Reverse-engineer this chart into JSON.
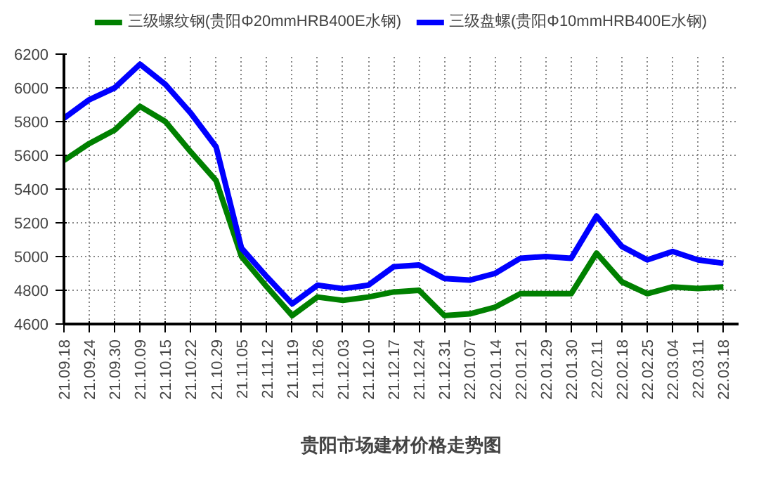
{
  "chart_data": {
    "type": "line",
    "title": "贵阳市场建材价格走势图",
    "categories": [
      "21.09.18",
      "21.09.24",
      "21.09.30",
      "21.10.09",
      "21.10.15",
      "21.10.22",
      "21.10.29",
      "21.11.05",
      "21.11.12",
      "21.11.19",
      "21.11.26",
      "21.12.03",
      "21.12.10",
      "21.12.17",
      "21.12.24",
      "21.12.31",
      "22.01.07",
      "22.01.14",
      "22.01.21",
      "22.01.29",
      "22.01.30",
      "22.02.11",
      "22.02.18",
      "22.02.25",
      "22.03.04",
      "22.03.11",
      "22.03.18"
    ],
    "series": [
      {
        "name": "三级螺纹钢(贵阳Φ20mmHRB400E水钢)",
        "color": "#008000",
        "values": [
          5570,
          5670,
          5750,
          5890,
          5800,
          5620,
          5450,
          5000,
          4820,
          4650,
          4760,
          4740,
          4760,
          4790,
          4800,
          4650,
          4660,
          4700,
          4780,
          4780,
          4780,
          5020,
          4850,
          4780,
          4820,
          4810,
          4820
        ]
      },
      {
        "name": "三级盘螺(贵阳Φ10mmHRB400E水钢)",
        "color": "#0000ff",
        "values": [
          5820,
          5930,
          6000,
          6140,
          6020,
          5850,
          5650,
          5050,
          4880,
          4720,
          4830,
          4810,
          4830,
          4940,
          4950,
          4870,
          4860,
          4900,
          4990,
          5000,
          4990,
          5240,
          5060,
          4980,
          5030,
          4980,
          4960
        ]
      }
    ],
    "ylim": [
      4600,
      6200
    ],
    "yticks": [
      4600,
      4800,
      5000,
      5200,
      5400,
      5600,
      5800,
      6000,
      6200
    ],
    "grid": true,
    "legend": "top",
    "marker": "none",
    "line_style": "solid"
  }
}
